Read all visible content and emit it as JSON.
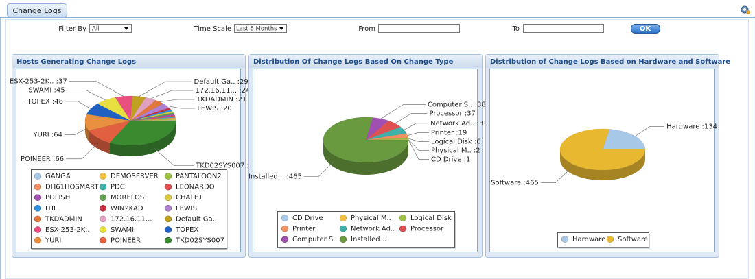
{
  "tab": "Change Logs",
  "filters": {
    "filter_by_label": "Filter By",
    "filter_by_value": "All",
    "time_scale_label": "Time Scale",
    "time_scale_value": "Last 6 Months",
    "from_label": "From",
    "to_label": "To",
    "ok": "OK"
  },
  "chart_data": [
    {
      "type": "pie",
      "title": "Hosts Generating Change Logs",
      "categories": [
        "GANGA",
        "DEMOSERVER",
        "PANTALOON2",
        "DH61HOSMART",
        "PDC",
        "LEONARDO",
        "POLISH",
        "MORELOS",
        "CHALET",
        "ITIL",
        "WIN2KAD",
        "LEWIS",
        "TKDADMIN",
        "172.16.11...",
        "Default Ga..",
        "ESX-253-2K..",
        "SWAMI",
        "TOPEX",
        "YURI",
        "POINEER",
        "TKD02SYS007"
      ],
      "values": [
        2,
        3,
        3,
        4,
        4,
        5,
        5,
        6,
        6,
        7,
        8,
        20,
        21,
        24,
        29,
        37,
        45,
        48,
        64,
        66,
        196
      ],
      "value_labels": [
        null,
        null,
        null,
        null,
        null,
        null,
        null,
        null,
        null,
        null,
        null,
        "LEWIS :20",
        "TKDADMIN :21",
        "172.16.11... :24",
        "Default Ga.. :29",
        "ESX-253-2K.. :37",
        "SWAMI :45",
        "TOPEX :48",
        "YURI :64",
        "POINEER :66",
        "TKD02SYS007 :196"
      ],
      "colors": [
        "#a8c8e8",
        "#f0c040",
        "#9cc040",
        "#f09060",
        "#40b0a8",
        "#e05050",
        "#a050b0",
        "#60a050",
        "#d8c840",
        "#3090e0",
        "#c03040",
        "#b080d0",
        "#e07840",
        "#e0a0c0",
        "#c0a020",
        "#e85080",
        "#e8e040",
        "#2060c0",
        "#e89040",
        "#e06040",
        "#3a8a30"
      ]
    },
    {
      "type": "pie",
      "title": "Distribution Of Change Logs Based On Change Type",
      "categories": [
        "CD Drive",
        "Physical M..",
        "Logical Disk",
        "Printer",
        "Network Ad..",
        "Processor",
        "Computer S..",
        "Installed .."
      ],
      "values": [
        1,
        2,
        6,
        19,
        31,
        37,
        38,
        465
      ],
      "value_labels": [
        "CD Drive :1",
        "Physical M.. :2",
        "Logical Disk :6",
        "Printer :19",
        "Network Ad.. :31",
        "Processor :37",
        "Computer S.. :38",
        "Installed .. :465"
      ],
      "colors": [
        "#a8c8e8",
        "#f0c040",
        "#9cc040",
        "#f09060",
        "#40b0a8",
        "#e05050",
        "#a050b0",
        "#6a9a40"
      ]
    },
    {
      "type": "pie",
      "title": "Distribution of Change Logs Based on Hardware and Software",
      "categories": [
        "Hardware",
        "Software"
      ],
      "values": [
        134,
        465
      ],
      "value_labels": [
        "Hardware :134",
        "Software :465"
      ],
      "colors": [
        "#a8c8e8",
        "#e8b830"
      ]
    }
  ]
}
